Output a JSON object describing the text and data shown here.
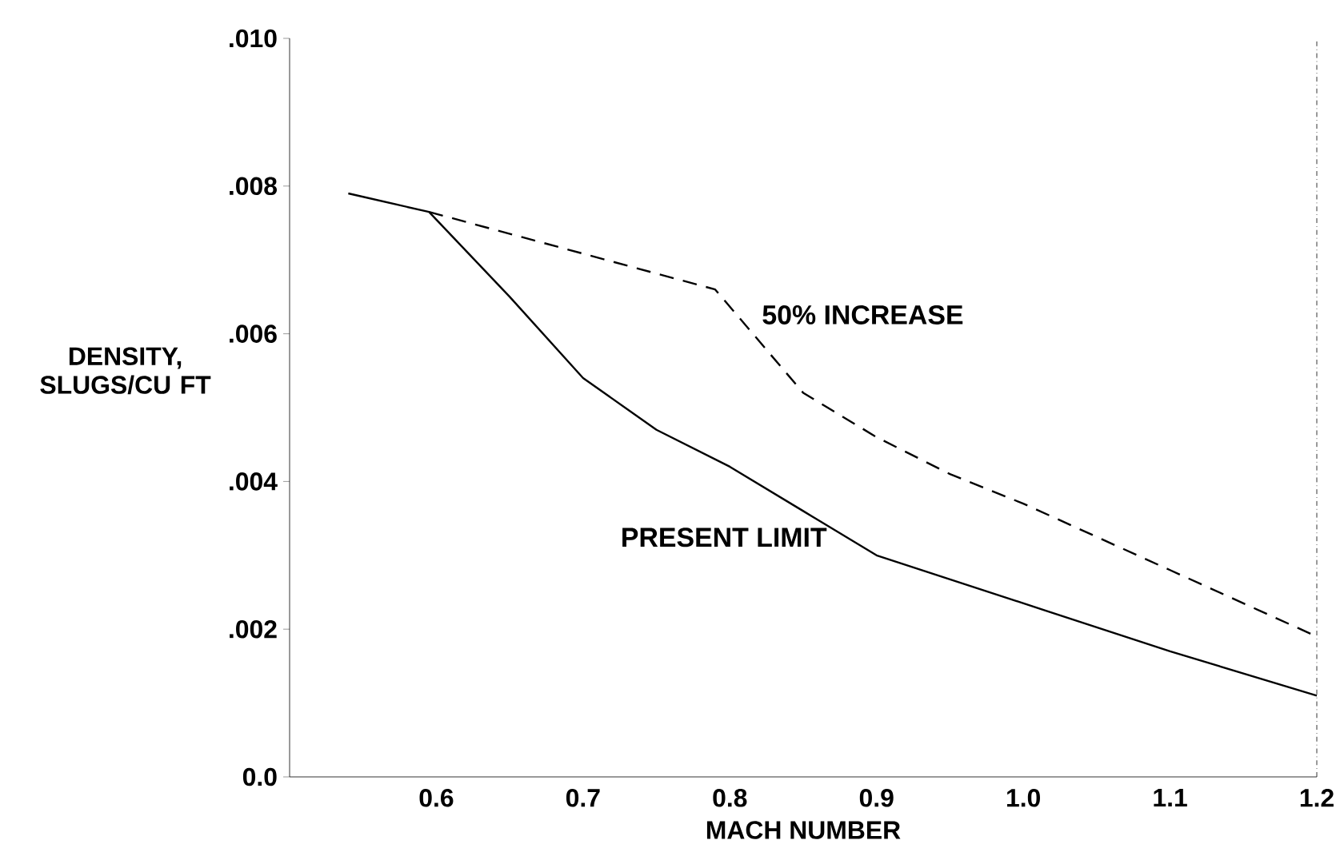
{
  "chart_data": {
    "type": "line",
    "xlabel": "MACH NUMBER",
    "ylabel": "DENSITY, SLUGS/CU FT",
    "xlim": [
      0.5,
      1.2
    ],
    "ylim": [
      0,
      0.01
    ],
    "xticks": [
      {
        "value": 0.6,
        "label": "0.6"
      },
      {
        "value": 0.7,
        "label": "0.7"
      },
      {
        "value": 0.8,
        "label": "0.8"
      },
      {
        "value": 0.9,
        "label": "0.9"
      },
      {
        "value": 1.0,
        "label": "1.0"
      },
      {
        "value": 1.1,
        "label": "1.1"
      },
      {
        "value": 1.2,
        "label": "1.2"
      }
    ],
    "yticks": [
      {
        "value": 0,
        "label": "0.0"
      },
      {
        "value": 0.002,
        "label": ".002"
      },
      {
        "value": 0.004,
        "label": ".004"
      },
      {
        "value": 0.006,
        "label": ".006"
      },
      {
        "value": 0.008,
        "label": ".008"
      },
      {
        "value": 0.01,
        "label": ".010"
      }
    ],
    "series": [
      {
        "name": "PRESENT LIMIT",
        "color": "#000000",
        "line_style": "solid",
        "x": [
          0.54,
          0.595,
          0.65,
          0.7,
          0.75,
          0.8,
          0.85,
          0.9,
          1.0,
          1.1,
          1.2
        ],
        "values": [
          0.0079,
          0.00765,
          0.0065,
          0.0054,
          0.0047,
          0.0042,
          0.0036,
          0.003,
          0.00235,
          0.0017,
          0.0011
        ]
      },
      {
        "name": "50% INCREASE",
        "color": "#000000",
        "line_style": "dashed",
        "x": [
          0.595,
          0.79,
          0.85,
          0.9,
          0.95,
          1.0,
          1.1,
          1.2
        ],
        "values": [
          0.00765,
          0.0066,
          0.0052,
          0.0046,
          0.0041,
          0.0037,
          0.0028,
          0.0019
        ]
      }
    ]
  }
}
